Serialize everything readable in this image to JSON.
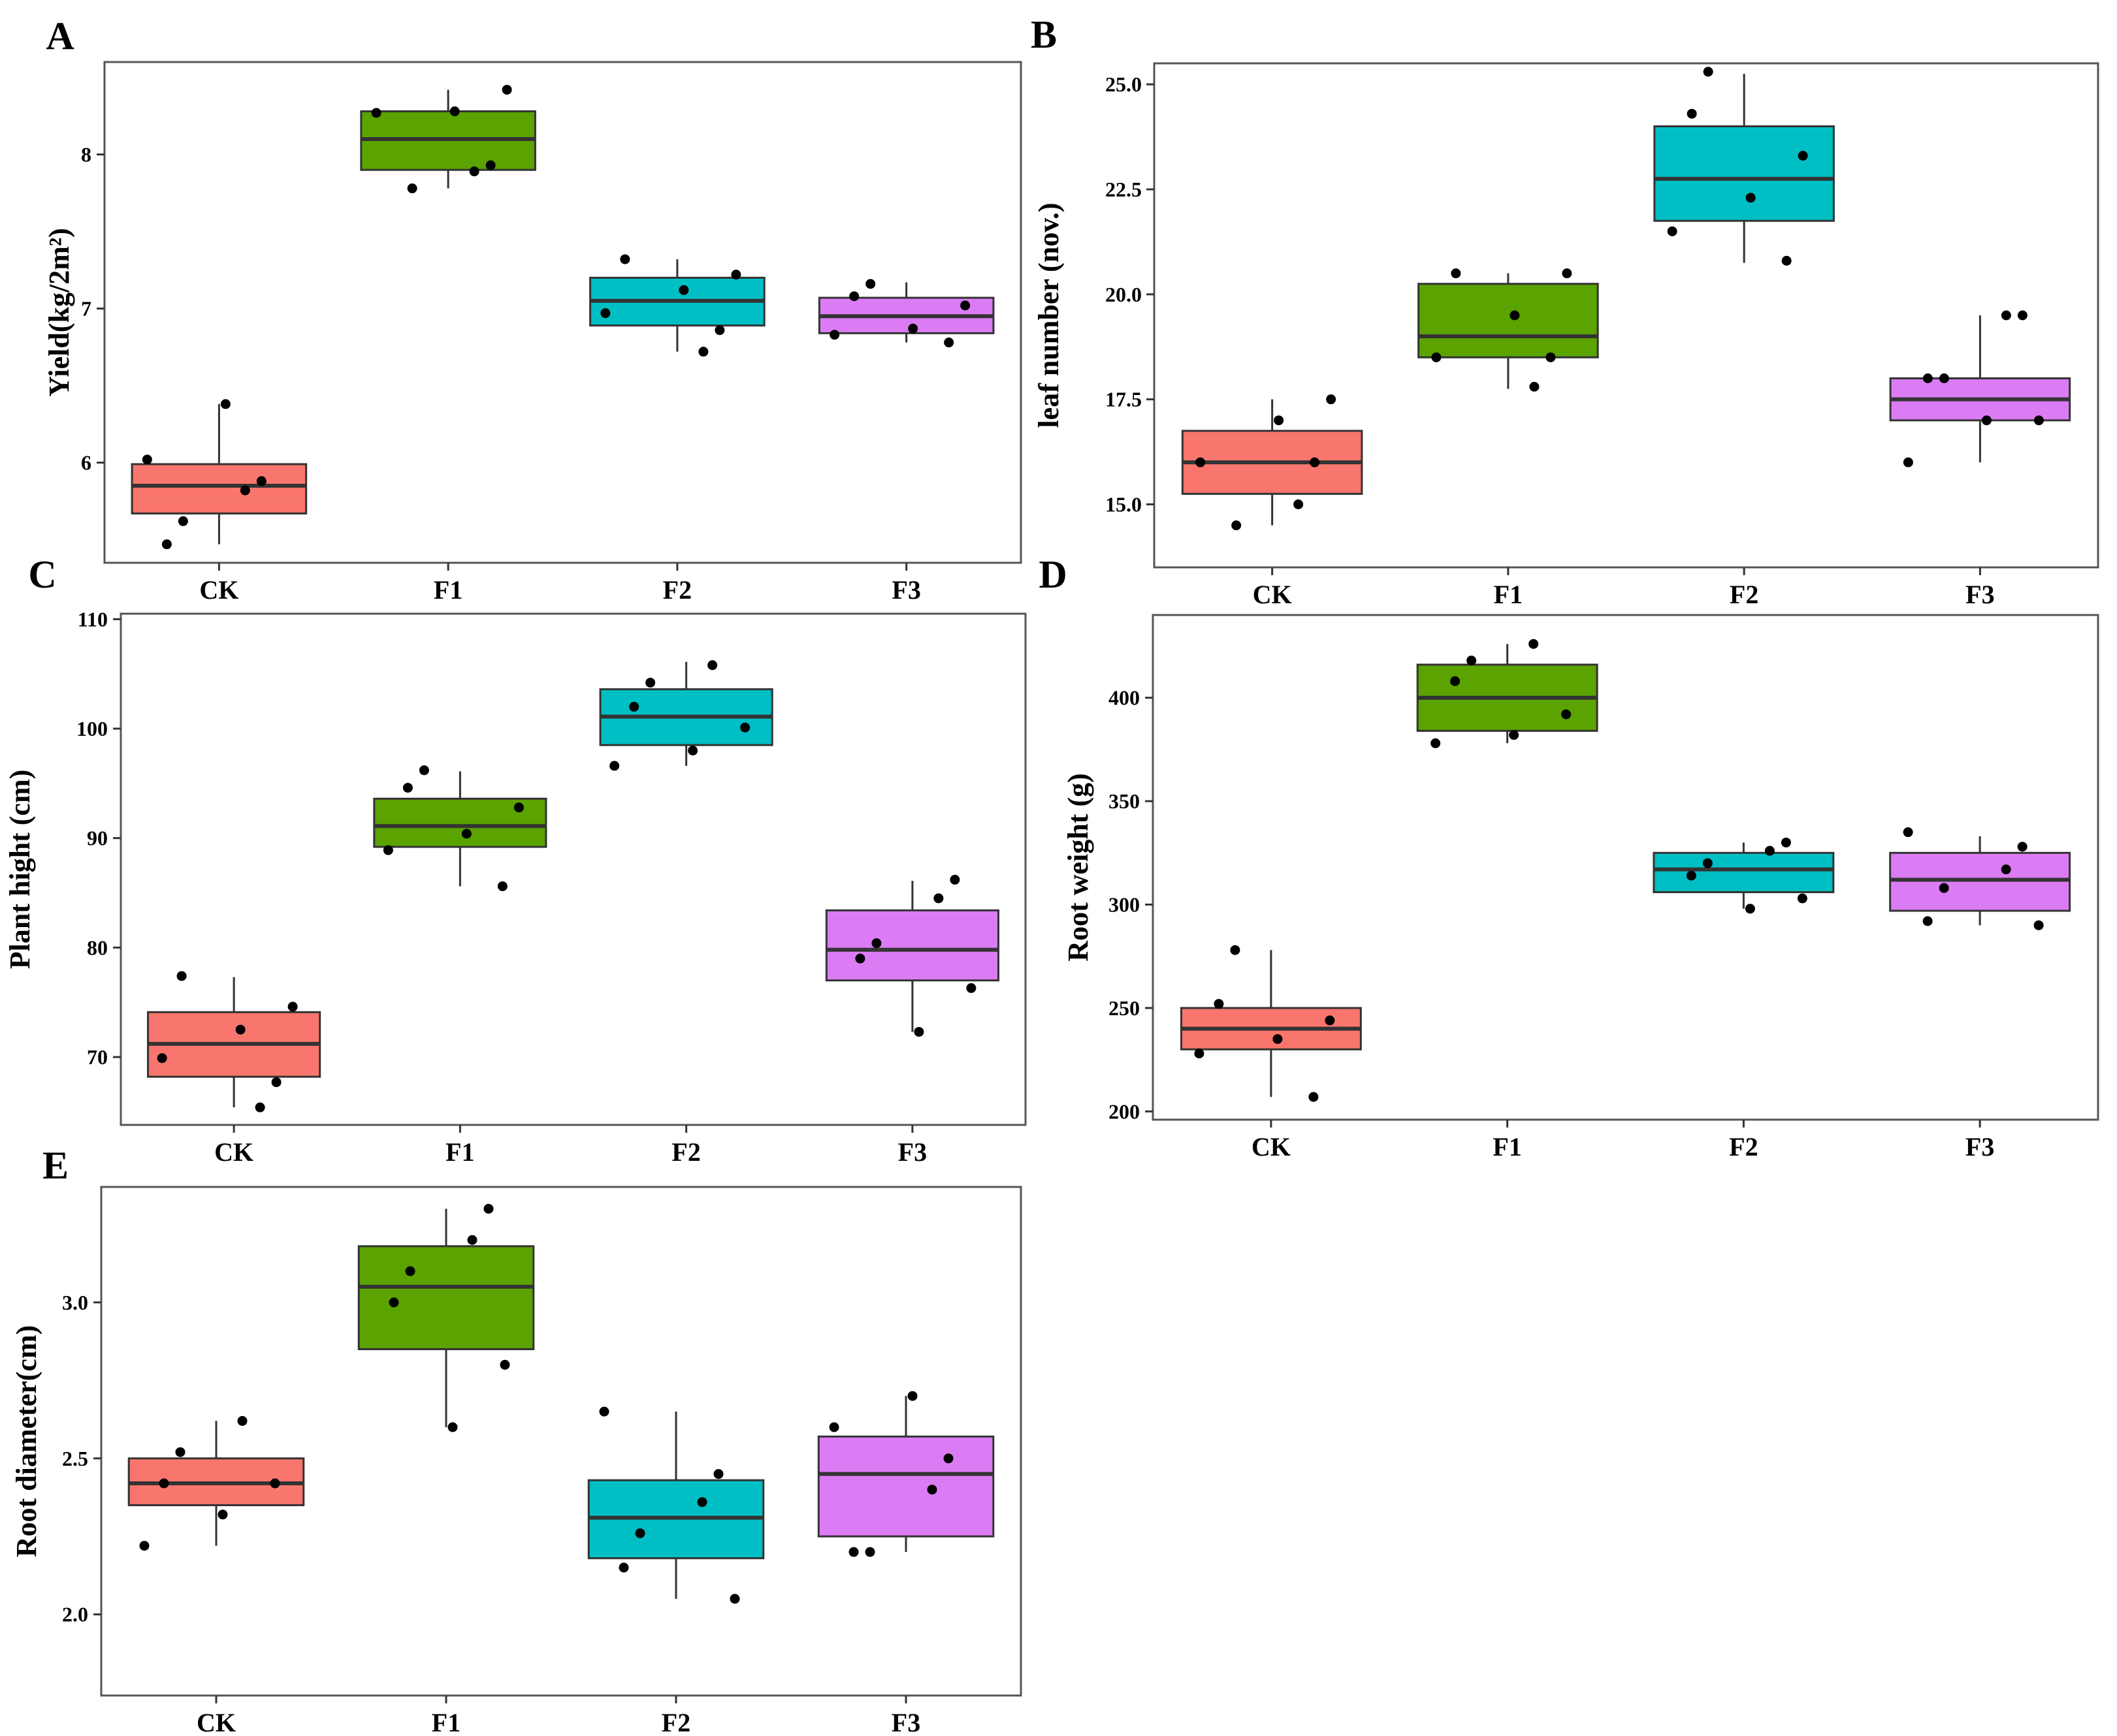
{
  "figure": {
    "categories": [
      "CK",
      "F1",
      "F2",
      "F3"
    ],
    "colors": {
      "CK": "#f8766d",
      "F1": "#5aa300",
      "F2": "#00bfc4",
      "F3": "#dc7cf5",
      "box_edge": "#333333",
      "point": "#000000",
      "frame": "#555555"
    }
  },
  "chart_data": [
    {
      "panel": "A",
      "type": "box",
      "ylabel": "Yield(kg/2m²)",
      "categories": [
        "CK",
        "F1",
        "F2",
        "F3"
      ],
      "ylim": [
        5.35,
        8.6
      ],
      "yticks": [
        6,
        7,
        8
      ],
      "ytick_labels": [
        "6",
        "7",
        "8"
      ],
      "boxes": [
        {
          "q1": 5.67,
          "median": 5.85,
          "q3": 5.99,
          "whisker_low": 5.47,
          "whisker_high": 6.38
        },
        {
          "q1": 7.9,
          "median": 8.1,
          "q3": 8.28,
          "whisker_low": 7.78,
          "whisker_high": 8.42
        },
        {
          "q1": 6.89,
          "median": 7.05,
          "q3": 7.2,
          "whisker_low": 6.72,
          "whisker_high": 7.32
        },
        {
          "q1": 6.84,
          "median": 6.95,
          "q3": 7.07,
          "whisker_low": 6.78,
          "whisker_high": 7.17
        }
      ],
      "points": [
        [
          5.47,
          5.62,
          5.82,
          5.88,
          6.02,
          6.38
        ],
        [
          7.78,
          7.89,
          7.93,
          8.27,
          8.28,
          8.42
        ],
        [
          6.72,
          6.86,
          6.97,
          7.12,
          7.22,
          7.32
        ],
        [
          6.78,
          6.83,
          6.87,
          7.02,
          7.08,
          7.16
        ]
      ]
    },
    {
      "panel": "B",
      "type": "box",
      "ylabel": "leaf number (nov.)",
      "categories": [
        "CK",
        "F1",
        "F2",
        "F3"
      ],
      "ylim": [
        13.5,
        25.5
      ],
      "yticks": [
        15,
        17.5,
        20,
        22.5,
        25
      ],
      "ytick_labels": [
        "15.0",
        "17.5",
        "20.0",
        "22.5",
        "25.0"
      ],
      "boxes": [
        {
          "q1": 15.25,
          "median": 16.0,
          "q3": 16.75,
          "whisker_low": 14.5,
          "whisker_high": 17.5
        },
        {
          "q1": 18.5,
          "median": 19.0,
          "q3": 20.25,
          "whisker_low": 17.75,
          "whisker_high": 20.5
        },
        {
          "q1": 21.75,
          "median": 22.75,
          "q3": 24.0,
          "whisker_low": 20.75,
          "whisker_high": 25.25
        },
        {
          "q1": 17.0,
          "median": 17.5,
          "q3": 18.0,
          "whisker_low": 16.0,
          "whisker_high": 19.5
        }
      ],
      "points": [
        [
          14.5,
          15.0,
          16.0,
          16.0,
          17.0,
          17.5
        ],
        [
          17.8,
          18.5,
          18.5,
          19.5,
          20.5,
          20.5
        ],
        [
          20.8,
          21.5,
          22.3,
          23.3,
          24.3,
          25.3
        ],
        [
          16.0,
          17.0,
          17.0,
          18.0,
          18.0,
          19.5,
          19.5
        ]
      ]
    },
    {
      "panel": "C",
      "type": "box",
      "ylabel": "Plant hight (cm)",
      "categories": [
        "CK",
        "F1",
        "F2",
        "F3"
      ],
      "ylim": [
        63.8,
        110.5
      ],
      "yticks": [
        70,
        80,
        90,
        100,
        110
      ],
      "ytick_labels": [
        "70",
        "80",
        "90",
        "100",
        "110"
      ],
      "boxes": [
        {
          "q1": 68.2,
          "median": 71.2,
          "q3": 74.1,
          "whisker_low": 65.4,
          "whisker_high": 77.3
        },
        {
          "q1": 89.2,
          "median": 91.1,
          "q3": 93.6,
          "whisker_low": 85.6,
          "whisker_high": 96.1
        },
        {
          "q1": 98.5,
          "median": 101.1,
          "q3": 103.6,
          "whisker_low": 96.6,
          "whisker_high": 106.1
        },
        {
          "q1": 77.0,
          "median": 79.8,
          "q3": 83.4,
          "whisker_low": 72.3,
          "whisker_high": 86.1
        }
      ],
      "points": [
        [
          65.4,
          67.7,
          69.9,
          72.5,
          74.6,
          77.4
        ],
        [
          85.6,
          88.9,
          90.4,
          92.8,
          94.6,
          96.2
        ],
        [
          96.6,
          98.0,
          100.1,
          102.0,
          104.2,
          105.8
        ],
        [
          72.3,
          76.3,
          79.0,
          80.4,
          84.5,
          86.2
        ]
      ]
    },
    {
      "panel": "D",
      "type": "box",
      "ylabel": "Root weight (g)",
      "categories": [
        "CK",
        "F1",
        "F2",
        "F3"
      ],
      "ylim": [
        196,
        440
      ],
      "yticks": [
        200,
        250,
        300,
        350,
        400
      ],
      "ytick_labels": [
        "200",
        "250",
        "300",
        "350",
        "400"
      ],
      "boxes": [
        {
          "q1": 230,
          "median": 240,
          "q3": 250,
          "whisker_low": 207,
          "whisker_high": 278
        },
        {
          "q1": 384,
          "median": 400,
          "q3": 416,
          "whisker_low": 378,
          "whisker_high": 426
        },
        {
          "q1": 306,
          "median": 317,
          "q3": 325,
          "whisker_low": 298,
          "whisker_high": 330
        },
        {
          "q1": 297,
          "median": 312,
          "q3": 325,
          "whisker_low": 290,
          "whisker_high": 333
        }
      ],
      "points": [
        [
          207,
          228,
          235,
          244,
          252,
          278
        ],
        [
          378,
          382,
          392,
          408,
          418,
          426
        ],
        [
          298,
          303,
          314,
          320,
          326,
          330
        ],
        [
          290,
          292,
          308,
          317,
          328,
          335
        ]
      ]
    },
    {
      "panel": "E",
      "type": "box",
      "ylabel": "Root diameter(cm)",
      "categories": [
        "CK",
        "F1",
        "F2",
        "F3"
      ],
      "ylim": [
        1.74,
        3.37
      ],
      "yticks": [
        2.0,
        2.5,
        3.0
      ],
      "ytick_labels": [
        "2.0",
        "2.5",
        "3.0"
      ],
      "boxes": [
        {
          "q1": 2.35,
          "median": 2.42,
          "q3": 2.5,
          "whisker_low": 2.22,
          "whisker_high": 2.62
        },
        {
          "q1": 2.85,
          "median": 3.05,
          "q3": 3.18,
          "whisker_low": 2.6,
          "whisker_high": 3.3
        },
        {
          "q1": 2.18,
          "median": 2.31,
          "q3": 2.43,
          "whisker_low": 2.05,
          "whisker_high": 2.65
        },
        {
          "q1": 2.25,
          "median": 2.45,
          "q3": 2.57,
          "whisker_low": 2.2,
          "whisker_high": 2.7
        }
      ],
      "points": [
        [
          2.22,
          2.32,
          2.42,
          2.42,
          2.52,
          2.62
        ],
        [
          2.6,
          2.8,
          3.0,
          3.1,
          3.2,
          3.3
        ],
        [
          2.05,
          2.15,
          2.26,
          2.36,
          2.45,
          2.65
        ],
        [
          2.2,
          2.2,
          2.4,
          2.5,
          2.6,
          2.7
        ]
      ]
    }
  ]
}
